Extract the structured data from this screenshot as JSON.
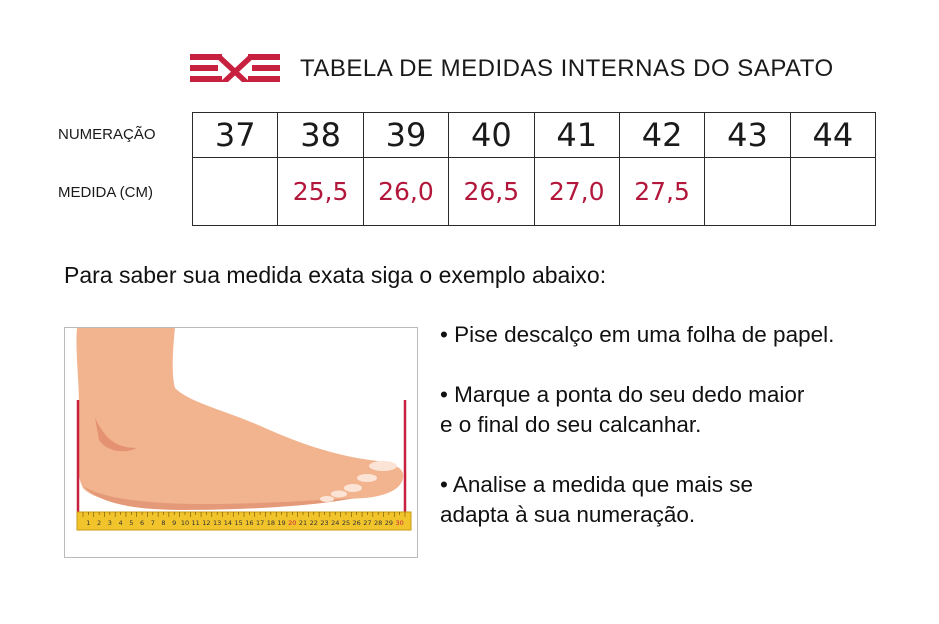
{
  "header": {
    "logo": "red-cross-stripes-logo",
    "title": "TABELA DE MEDIDAS INTERNAS DO SAPATO"
  },
  "table": {
    "row_labels": [
      "NUMERAÇÃO",
      "MEDIDA (CM)"
    ],
    "sizes": [
      "37",
      "38",
      "39",
      "40",
      "41",
      "42",
      "43",
      "44"
    ],
    "measures": [
      "",
      "25,5",
      "26,0",
      "26,5",
      "27,0",
      "27,5",
      "",
      ""
    ]
  },
  "intro": "Para saber sua medida exata siga o exemplo abaixo:",
  "illustration": {
    "icon": "foot-on-ruler-icon",
    "ruler_numbers": [
      "1",
      "2",
      "3",
      "4",
      "5",
      "6",
      "7",
      "8",
      "9",
      "10",
      "11",
      "12",
      "13",
      "14",
      "15",
      "16",
      "17",
      "18",
      "19",
      "20",
      "21",
      "22",
      "23",
      "24",
      "25",
      "26",
      "27",
      "28",
      "29",
      "30"
    ]
  },
  "steps": {
    "step1": [
      "• Pise descalço em uma folha de papel."
    ],
    "step2": [
      "• Marque a ponta do seu dedo maior",
      "e o final do seu calcanhar."
    ],
    "step3": [
      "• Analise a medida que mais se",
      "adapta à sua numeração."
    ]
  },
  "colors": {
    "accent": "#b3173b",
    "skin": "#f2b48f",
    "ruler": "#f2c42c",
    "text": "#1a1a1a"
  }
}
